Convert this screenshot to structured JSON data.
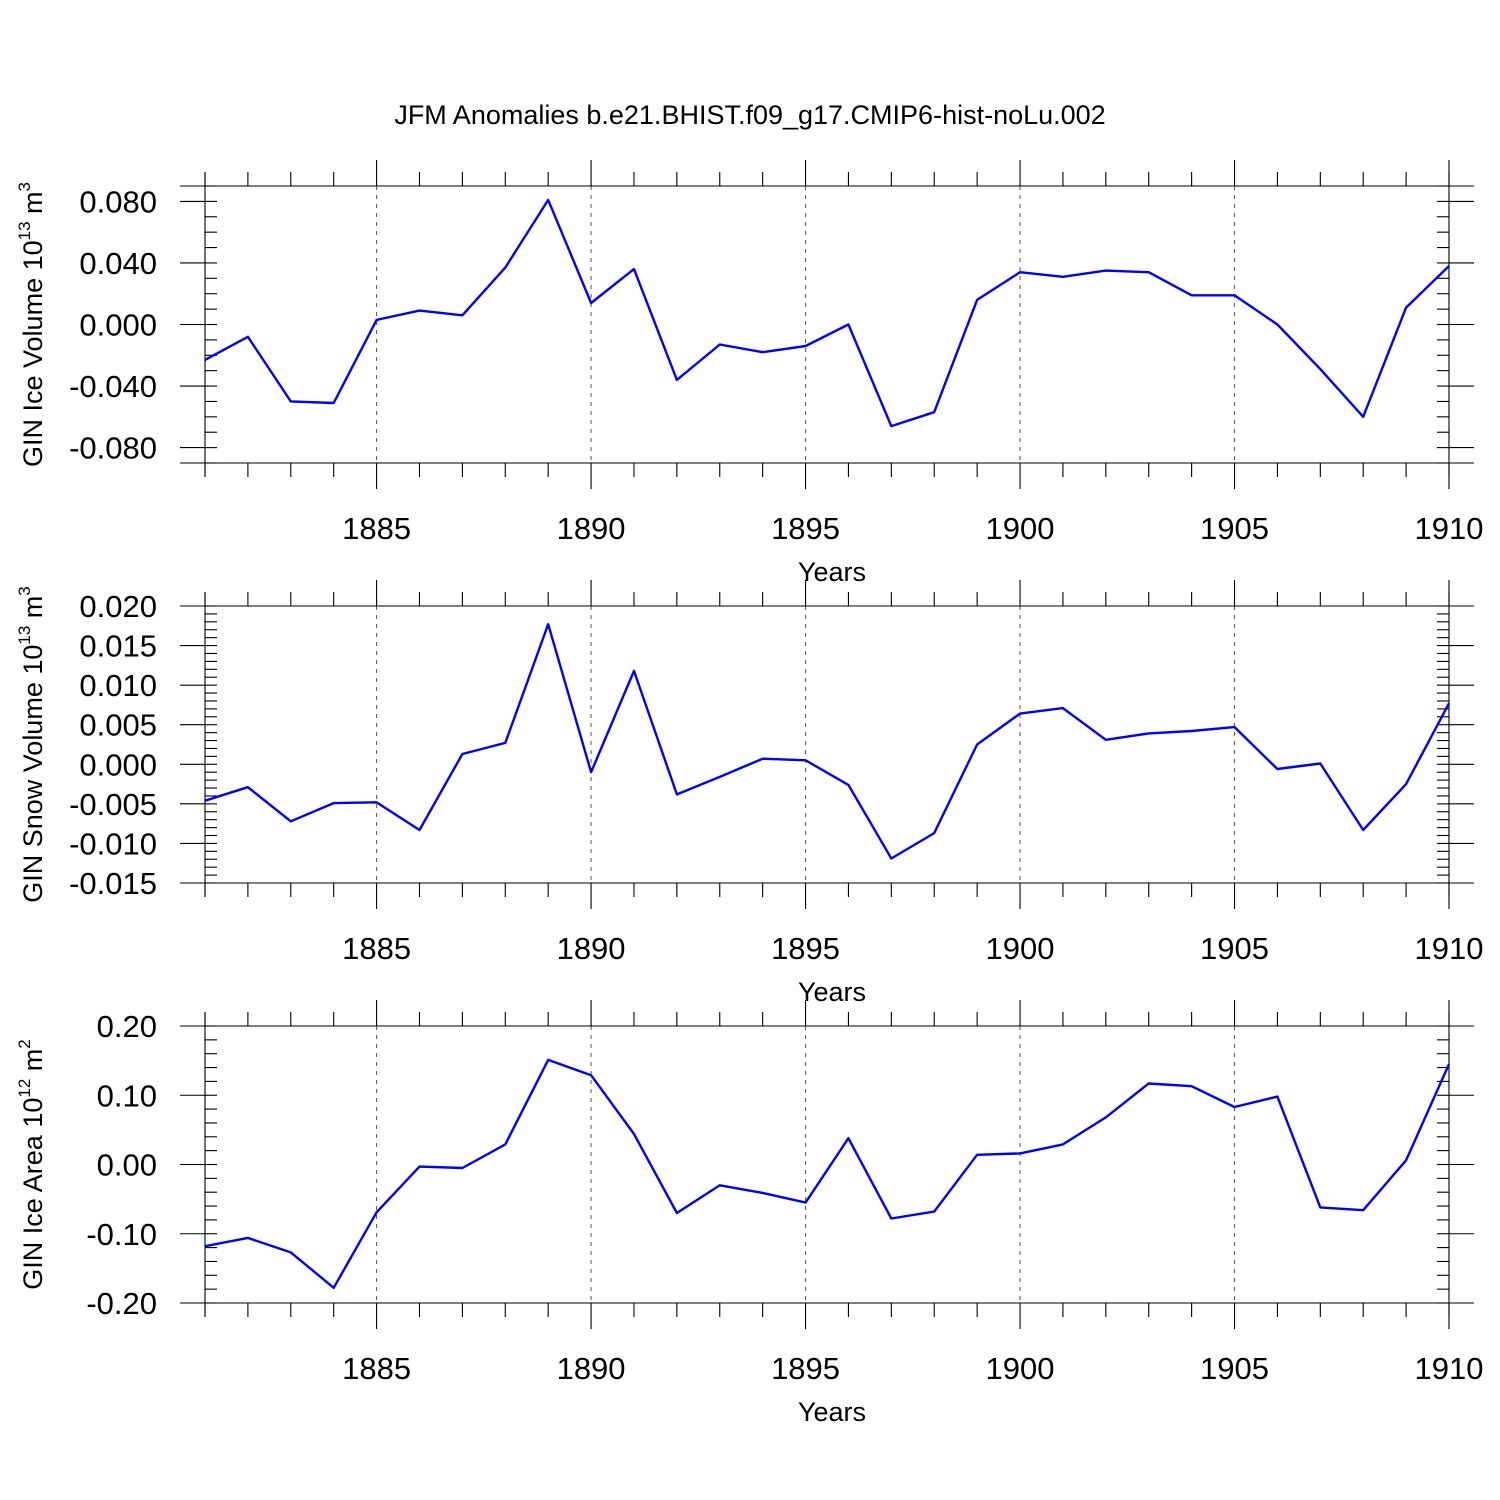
{
  "chart_data": [
    {
      "type": "line",
      "title": "JFM Anomalies b.e21.BHIST.f09_g17.CMIP6-hist-noLu.002",
      "xlabel": "Years",
      "ylabel": "GIN Ice Volume 10",
      "ylabel_exponent": "13",
      "ylabel_unit": " m",
      "ylabel_unit_exponent": "3",
      "xlim": [
        1881,
        1910
      ],
      "ylim": [
        -0.09,
        0.09
      ],
      "xticks": [
        1885,
        1890,
        1895,
        1900,
        1905,
        1910
      ],
      "xtick_labels": [
        "1885",
        "1890",
        "1895",
        "1900",
        "1905",
        "1910"
      ],
      "yticks": [
        -0.08,
        -0.04,
        0.0,
        0.04,
        0.08
      ],
      "ytick_labels": [
        "-0.080",
        "-0.040",
        "0.000",
        "0.040",
        "0.080"
      ],
      "ymin_minor_step": 0.01,
      "grid": "dashed vertical at major x ticks",
      "color": "#0000ff",
      "x": [
        1881,
        1882,
        1883,
        1884,
        1885,
        1886,
        1887,
        1888,
        1889,
        1890,
        1891,
        1892,
        1893,
        1894,
        1895,
        1896,
        1897,
        1898,
        1899,
        1900,
        1901,
        1902,
        1903,
        1904,
        1905,
        1906,
        1907,
        1908,
        1909,
        1910
      ],
      "values": [
        -0.023,
        -0.008,
        -0.05,
        -0.051,
        0.003,
        0.009,
        0.006,
        0.037,
        0.081,
        0.014,
        0.036,
        -0.036,
        -0.013,
        -0.018,
        -0.014,
        0.0,
        -0.066,
        -0.057,
        0.016,
        0.034,
        0.031,
        0.035,
        0.034,
        0.019,
        0.019,
        0.0,
        -0.029,
        -0.06,
        0.011,
        0.038
      ]
    },
    {
      "type": "line",
      "title": "",
      "xlabel": "Years",
      "ylabel": "GIN Snow Volume 10",
      "ylabel_exponent": "13",
      "ylabel_unit": " m",
      "ylabel_unit_exponent": "3",
      "xlim": [
        1881,
        1910
      ],
      "ylim": [
        -0.015,
        0.02
      ],
      "xticks": [
        1885,
        1890,
        1895,
        1900,
        1905,
        1910
      ],
      "xtick_labels": [
        "1885",
        "1890",
        "1895",
        "1900",
        "1905",
        "1910"
      ],
      "yticks": [
        -0.015,
        -0.01,
        -0.005,
        0.0,
        0.005,
        0.01,
        0.015,
        0.02
      ],
      "ytick_labels": [
        "-0.015",
        "-0.010",
        "-0.005",
        "0.000",
        "0.005",
        "0.010",
        "0.015",
        "0.020"
      ],
      "ymin_minor_step": 0.001,
      "grid": "dashed vertical at major x ticks",
      "color": "#0000ff",
      "x": [
        1881,
        1882,
        1883,
        1884,
        1885,
        1886,
        1887,
        1888,
        1889,
        1890,
        1891,
        1892,
        1893,
        1894,
        1895,
        1896,
        1897,
        1898,
        1899,
        1900,
        1901,
        1902,
        1903,
        1904,
        1905,
        1906,
        1907,
        1908,
        1909,
        1910
      ],
      "values": [
        -0.0046,
        -0.0029,
        -0.0072,
        -0.0049,
        -0.0048,
        -0.0083,
        0.0013,
        0.0027,
        0.0177,
        -0.001,
        0.0118,
        -0.0038,
        -0.0016,
        0.0007,
        0.0005,
        -0.0026,
        -0.0119,
        -0.0087,
        0.0025,
        0.0064,
        0.0071,
        0.0031,
        0.0039,
        0.0042,
        0.0047,
        -0.0006,
        0.0001,
        -0.0083,
        -0.0025,
        0.0077
      ]
    },
    {
      "type": "line",
      "title": "",
      "xlabel": "Years",
      "ylabel": "GIN Ice Area 10",
      "ylabel_exponent": "12",
      "ylabel_unit": " m",
      "ylabel_unit_exponent": "2",
      "xlim": [
        1881,
        1910
      ],
      "ylim": [
        -0.2,
        0.2
      ],
      "xticks": [
        1885,
        1890,
        1895,
        1900,
        1905,
        1910
      ],
      "xtick_labels": [
        "1885",
        "1890",
        "1895",
        "1900",
        "1905",
        "1910"
      ],
      "yticks": [
        -0.2,
        -0.1,
        0.0,
        0.1,
        0.2
      ],
      "ytick_labels": [
        "-0.20",
        "-0.10",
        "0.00",
        "0.10",
        "0.20"
      ],
      "ymin_minor_step": 0.02,
      "grid": "dashed vertical at major x ticks",
      "color": "#0000ff",
      "x": [
        1881,
        1882,
        1883,
        1884,
        1885,
        1886,
        1887,
        1888,
        1889,
        1890,
        1891,
        1892,
        1893,
        1894,
        1895,
        1896,
        1897,
        1898,
        1899,
        1900,
        1901,
        1902,
        1903,
        1904,
        1905,
        1906,
        1907,
        1908,
        1909,
        1910
      ],
      "values": [
        -0.118,
        -0.106,
        -0.127,
        -0.178,
        -0.069,
        -0.003,
        -0.005,
        0.029,
        0.151,
        0.129,
        0.044,
        -0.07,
        -0.03,
        -0.041,
        -0.055,
        0.038,
        -0.078,
        -0.068,
        0.014,
        0.016,
        0.029,
        0.068,
        0.117,
        0.113,
        0.083,
        0.098,
        -0.062,
        -0.066,
        0.006,
        0.145
      ]
    }
  ]
}
